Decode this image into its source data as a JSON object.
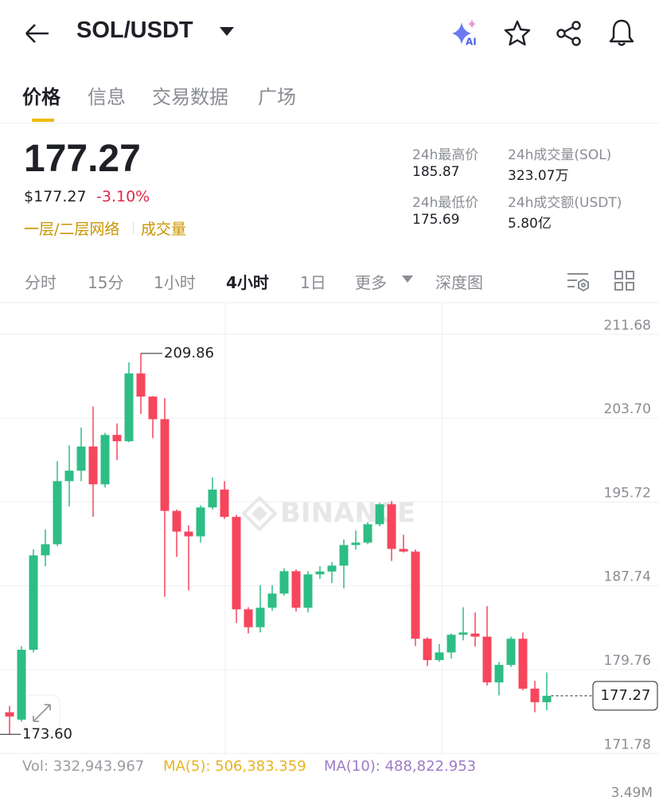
{
  "header": {
    "title": "SOL/USDT",
    "ai_badge": "AI"
  },
  "tabs": [
    "价格",
    "信息",
    "交易数据",
    "广场"
  ],
  "active_tab": 0,
  "price": {
    "last": "177.27",
    "usd": "$177.27",
    "change": "-3.10%"
  },
  "links": [
    "一层/二层网络",
    "成交量"
  ],
  "stats": [
    {
      "label": "24h最高价",
      "value": "185.87"
    },
    {
      "label": "24h成交量(SOL)",
      "value": "323.07万"
    },
    {
      "label": "24h最低价",
      "value": "175.69"
    },
    {
      "label": "24h成交额(USDT)",
      "value": "5.80亿"
    }
  ],
  "intervals": [
    "分时",
    "15分",
    "1小时",
    "4小时",
    "1日",
    "更多",
    "深度图"
  ],
  "active_interval": 3,
  "watermark": "BINANCE",
  "indicators": {
    "vol": "Vol: 332,943.967",
    "ma5": "MA(5): 506,383.359",
    "ma10": "MA(10): 488,822.953",
    "volume_tick": "3.49M"
  },
  "chart_data": {
    "type": "candlestick",
    "up_color": "#2ebd85",
    "down_color": "#f6465d",
    "ylim": [
      171.5,
      214.7
    ],
    "yticks": [
      211.68,
      {
        "value": 203.7,
        "label": "203.70"
      },
      195.72,
      187.74,
      179.76,
      171.78
    ],
    "grid": true,
    "open": [
      175.7,
      175.0,
      181.65,
      190.64,
      191.7,
      197.7,
      198.7,
      201.0,
      197.4,
      202.1,
      201.5,
      207.95,
      205.75,
      203.6,
      194.87,
      192.9,
      192.45,
      195.2,
      196.9,
      194.3,
      185.5,
      183.8,
      185.65,
      187.0,
      189.13,
      185.65,
      188.83,
      189.1,
      189.66,
      191.62,
      191.85,
      193.6,
      195.5,
      191.25,
      191.0,
      182.7,
      180.67,
      181.4,
      183.08,
      183.2,
      182.9,
      178.55,
      180.21,
      182.7,
      177.95,
      176.66
    ],
    "high": [
      176.3,
      182.0,
      191.2,
      193.1,
      199.6,
      201.1,
      202.8,
      204.8,
      202.3,
      203.2,
      209.0,
      209.86,
      205.8,
      205.6,
      195.0,
      193.5,
      195.4,
      198.05,
      197.7,
      194.5,
      185.7,
      187.8,
      187.8,
      189.4,
      189.3,
      189.13,
      189.6,
      190.0,
      192.15,
      193.0,
      193.8,
      195.65,
      195.8,
      192.6,
      191.2,
      182.85,
      182.2,
      183.2,
      185.7,
      185.2,
      185.8,
      180.5,
      182.9,
      183.3,
      178.7,
      179.5
    ],
    "low": [
      173.6,
      174.8,
      181.4,
      189.6,
      191.5,
      195.3,
      197.7,
      194.3,
      197.1,
      199.7,
      201.4,
      204.1,
      201.8,
      186.7,
      190.5,
      187.3,
      191.85,
      195.0,
      194.1,
      184.2,
      183.2,
      183.3,
      185.35,
      186.8,
      185.3,
      185.2,
      188.4,
      188.0,
      187.5,
      191.2,
      191.7,
      193.4,
      190.1,
      190.9,
      182.0,
      180.1,
      180.5,
      180.8,
      182.55,
      181.95,
      178.25,
      177.3,
      180.0,
      177.8,
      175.7,
      175.9
    ],
    "close": [
      175.3,
      181.65,
      190.64,
      191.7,
      197.7,
      198.7,
      201.0,
      197.4,
      202.1,
      201.5,
      207.95,
      205.75,
      203.6,
      194.87,
      192.9,
      192.45,
      195.2,
      196.9,
      194.3,
      185.5,
      183.8,
      185.65,
      187.0,
      189.13,
      185.65,
      188.83,
      189.1,
      189.66,
      191.62,
      191.85,
      193.6,
      195.5,
      191.25,
      191.0,
      182.7,
      180.67,
      181.4,
      183.08,
      183.3,
      182.9,
      178.55,
      180.21,
      182.7,
      177.95,
      176.66,
      177.27
    ],
    "annotations": [
      {
        "value": 209.86,
        "label": "209.86"
      },
      {
        "value": 173.6,
        "label": "173.60"
      }
    ],
    "last_price": {
      "value": 177.27,
      "label": "177.27"
    }
  }
}
